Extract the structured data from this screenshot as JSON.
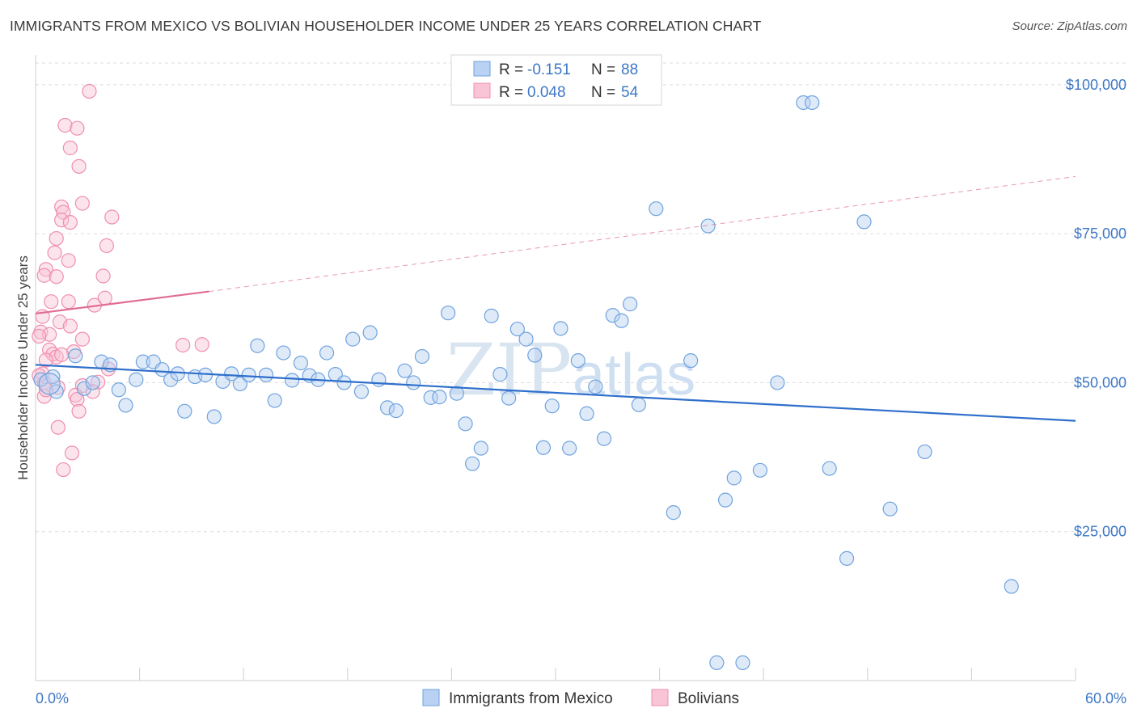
{
  "header": {
    "title": "IMMIGRANTS FROM MEXICO VS BOLIVIAN HOUSEHOLDER INCOME UNDER 25 YEARS CORRELATION CHART",
    "source": "Source: ZipAtlas.com"
  },
  "watermark": {
    "zip": "ZIP",
    "atlas": "atlas"
  },
  "colors": {
    "blue": "#6fa3de",
    "blue_line": "#2f6fcb",
    "pink": "#ef8fb0",
    "pink_line": "#e06c96",
    "tick": "#3f78c6"
  },
  "legend": {
    "rows": [
      {
        "r_label": "R = ",
        "r_value": "-0.151",
        "n_label": "N = ",
        "n_value": "88"
      },
      {
        "r_label": "R = ",
        "r_value": "0.048",
        "n_label": "N = ",
        "n_value": "54"
      }
    ]
  },
  "chart_data": {
    "type": "scatter",
    "ylabel": "Householder Income Under 25 years",
    "xlim": [
      0,
      60
    ],
    "ylim": [
      0,
      105000
    ],
    "x_tick_labels": [
      "0.0%",
      "60.0%"
    ],
    "y_ticks": [
      {
        "value": 25000,
        "label": "$25,000"
      },
      {
        "value": 50000,
        "label": "$50,000"
      },
      {
        "value": 75000,
        "label": "$75,000"
      },
      {
        "value": 100000,
        "label": "$100,000"
      }
    ],
    "grid": true,
    "legend_placement": "top-center",
    "series": [
      {
        "name": "Immigrants from Mexico",
        "trend": {
          "x0": 0,
          "y0": 53000,
          "x1": 60,
          "y1": 43600
        },
        "points": [
          [
            0.3,
            50500
          ],
          [
            1.0,
            51000
          ],
          [
            1.2,
            48500
          ],
          [
            2.3,
            54500
          ],
          [
            2.8,
            49000
          ],
          [
            3.3,
            50000
          ],
          [
            3.8,
            53500
          ],
          [
            4.3,
            53000
          ],
          [
            4.8,
            48800
          ],
          [
            5.2,
            46200
          ],
          [
            5.8,
            50500
          ],
          [
            6.2,
            53500
          ],
          [
            6.8,
            53500
          ],
          [
            7.3,
            52200
          ],
          [
            7.8,
            50500
          ],
          [
            8.2,
            51500
          ],
          [
            8.6,
            45200
          ],
          [
            9.2,
            51000
          ],
          [
            9.8,
            51300
          ],
          [
            10.3,
            44300
          ],
          [
            10.8,
            50200
          ],
          [
            11.3,
            51500
          ],
          [
            11.8,
            49800
          ],
          [
            12.3,
            51300
          ],
          [
            12.8,
            56200
          ],
          [
            13.3,
            51300
          ],
          [
            13.8,
            47000
          ],
          [
            14.3,
            55000
          ],
          [
            14.8,
            50400
          ],
          [
            15.3,
            53300
          ],
          [
            15.8,
            51200
          ],
          [
            16.3,
            50500
          ],
          [
            16.8,
            55000
          ],
          [
            17.3,
            51400
          ],
          [
            17.8,
            50000
          ],
          [
            18.3,
            57300
          ],
          [
            18.8,
            48500
          ],
          [
            19.3,
            58400
          ],
          [
            19.8,
            50500
          ],
          [
            20.3,
            45800
          ],
          [
            20.8,
            45300
          ],
          [
            21.3,
            52000
          ],
          [
            21.8,
            50000
          ],
          [
            22.3,
            54400
          ],
          [
            22.8,
            47500
          ],
          [
            23.3,
            47600
          ],
          [
            23.8,
            61700
          ],
          [
            24.3,
            48200
          ],
          [
            24.8,
            43100
          ],
          [
            25.2,
            36400
          ],
          [
            25.7,
            39000
          ],
          [
            26.3,
            61200
          ],
          [
            26.8,
            51400
          ],
          [
            27.3,
            47400
          ],
          [
            27.8,
            59000
          ],
          [
            28.3,
            57300
          ],
          [
            28.8,
            54600
          ],
          [
            29.3,
            39100
          ],
          [
            29.8,
            46100
          ],
          [
            30.3,
            59100
          ],
          [
            30.8,
            39000
          ],
          [
            31.3,
            53700
          ],
          [
            31.8,
            44800
          ],
          [
            32.3,
            49300
          ],
          [
            32.8,
            40600
          ],
          [
            33.3,
            61300
          ],
          [
            33.8,
            60400
          ],
          [
            34.3,
            63200
          ],
          [
            34.8,
            46300
          ],
          [
            35.8,
            79200
          ],
          [
            36.8,
            28200
          ],
          [
            37.8,
            53700
          ],
          [
            38.8,
            76300
          ],
          [
            39.3,
            3000
          ],
          [
            39.8,
            30300
          ],
          [
            40.3,
            34000
          ],
          [
            40.8,
            3000
          ],
          [
            41.8,
            35300
          ],
          [
            42.8,
            50000
          ],
          [
            44.3,
            97000
          ],
          [
            44.8,
            97000
          ],
          [
            45.8,
            35600
          ],
          [
            46.8,
            20500
          ],
          [
            47.8,
            77000
          ],
          [
            49.3,
            28800
          ],
          [
            51.3,
            38400
          ],
          [
            56.3,
            15800
          ],
          [
            0.8,
            49800
          ]
        ]
      },
      {
        "name": "Bolivians",
        "trend": {
          "x0": 0,
          "y0": 61600,
          "x1": 10,
          "y1": 65300,
          "x2": 60,
          "y2": 84600
        },
        "points": [
          [
            3.1,
            98900
          ],
          [
            1.7,
            93200
          ],
          [
            2.4,
            92700
          ],
          [
            2.0,
            89400
          ],
          [
            2.5,
            86300
          ],
          [
            2.7,
            80100
          ],
          [
            1.5,
            79500
          ],
          [
            1.6,
            78600
          ],
          [
            4.4,
            77800
          ],
          [
            1.5,
            77300
          ],
          [
            2.0,
            76900
          ],
          [
            1.2,
            74200
          ],
          [
            4.1,
            73000
          ],
          [
            1.1,
            71800
          ],
          [
            1.9,
            70500
          ],
          [
            0.6,
            69000
          ],
          [
            0.5,
            68000
          ],
          [
            1.2,
            67800
          ],
          [
            3.9,
            67900
          ],
          [
            4.0,
            64200
          ],
          [
            0.9,
            63600
          ],
          [
            1.9,
            63600
          ],
          [
            3.4,
            63000
          ],
          [
            0.4,
            61100
          ],
          [
            1.4,
            60200
          ],
          [
            2.0,
            59500
          ],
          [
            0.3,
            58500
          ],
          [
            0.8,
            58100
          ],
          [
            0.2,
            57800
          ],
          [
            2.7,
            57300
          ],
          [
            8.5,
            56300
          ],
          [
            9.6,
            56400
          ],
          [
            0.8,
            55500
          ],
          [
            2.2,
            55200
          ],
          [
            1.0,
            54800
          ],
          [
            1.2,
            54300
          ],
          [
            1.5,
            54700
          ],
          [
            0.6,
            53800
          ],
          [
            0.4,
            51500
          ],
          [
            4.2,
            52300
          ],
          [
            3.6,
            50100
          ],
          [
            0.5,
            50000
          ],
          [
            2.7,
            49500
          ],
          [
            1.3,
            49200
          ],
          [
            3.3,
            48500
          ],
          [
            2.3,
            47900
          ],
          [
            0.5,
            47700
          ],
          [
            2.4,
            47200
          ],
          [
            2.5,
            45200
          ],
          [
            1.3,
            42500
          ],
          [
            2.1,
            38200
          ],
          [
            1.6,
            35400
          ],
          [
            0.2,
            51200
          ],
          [
            0.6,
            48800
          ]
        ]
      }
    ]
  },
  "bottom_legend": {
    "items": [
      "Immigrants from Mexico",
      "Bolivians"
    ]
  }
}
